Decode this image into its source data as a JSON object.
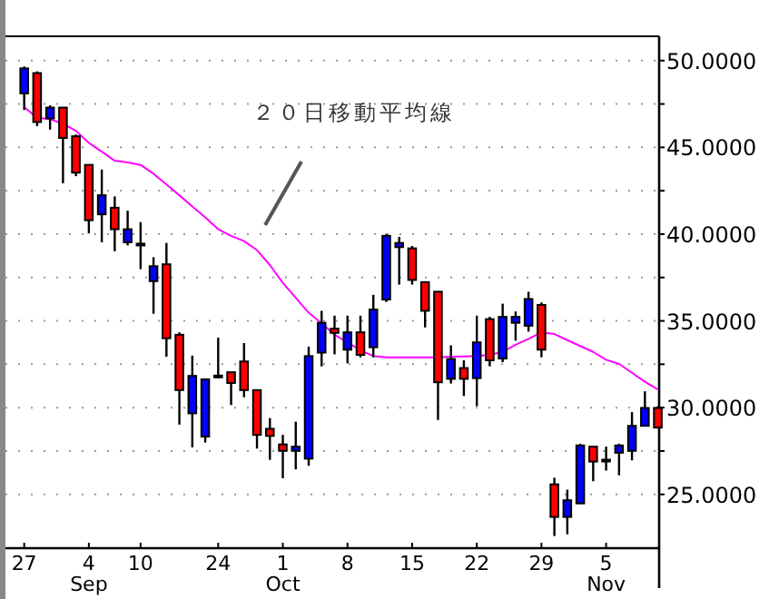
{
  "chart_data": {
    "type": "candlestick",
    "categories": [
      "27",
      null,
      null,
      null,
      null,
      "4 Sep",
      null,
      null,
      null,
      "10",
      null,
      null,
      null,
      null,
      null,
      "24",
      null,
      null,
      null,
      null,
      "1 Oct",
      null,
      null,
      null,
      null,
      "8",
      null,
      null,
      null,
      null,
      "15",
      null,
      null,
      null,
      null,
      "22",
      null,
      null,
      null,
      null,
      "29",
      null,
      null,
      null,
      null,
      "5 Nov",
      null,
      null,
      null,
      null
    ],
    "ohlc": [
      [
        48.11,
        49.66,
        47.15,
        49.55
      ],
      [
        49.28,
        49.38,
        46.22,
        46.46
      ],
      [
        46.67,
        47.42,
        46.02,
        47.29
      ],
      [
        47.29,
        47.29,
        42.93,
        45.54
      ],
      [
        45.64,
        45.74,
        43.34,
        43.54
      ],
      [
        43.99,
        43.99,
        40.04,
        40.8
      ],
      [
        41.14,
        43.72,
        39.53,
        42.24
      ],
      [
        41.52,
        42.17,
        39.01,
        40.28
      ],
      [
        39.53,
        41.35,
        39.35,
        40.28
      ],
      [
        39.45,
        40.69,
        37.98,
        39.4
      ],
      [
        37.29,
        38.67,
        35.41,
        38.15
      ],
      [
        38.26,
        39.49,
        32.93,
        34.0
      ],
      [
        34.2,
        34.34,
        29.02,
        31.01
      ],
      [
        29.67,
        33.0,
        27.71,
        31.83
      ],
      [
        28.33,
        31.63,
        27.99,
        31.63
      ],
      [
        31.85,
        34.03,
        31.7,
        31.8
      ],
      [
        32.04,
        32.04,
        30.15,
        31.42
      ],
      [
        32.66,
        33.72,
        30.6,
        31.01
      ],
      [
        31.01,
        31.01,
        27.64,
        28.43
      ],
      [
        28.78,
        29.4,
        26.99,
        28.37
      ],
      [
        27.88,
        28.43,
        25.93,
        27.51
      ],
      [
        27.51,
        29.19,
        26.44,
        27.75
      ],
      [
        27.06,
        33.52,
        26.65,
        32.97
      ],
      [
        33.17,
        35.58,
        32.38,
        34.89
      ],
      [
        34.55,
        35.3,
        33.07,
        34.31
      ],
      [
        33.34,
        35.3,
        32.55,
        34.34
      ],
      [
        34.34,
        35.3,
        32.9,
        33.04
      ],
      [
        33.48,
        36.5,
        32.9,
        35.65
      ],
      [
        36.23,
        40.01,
        36.09,
        39.9
      ],
      [
        39.25,
        39.84,
        37.09,
        39.49
      ],
      [
        39.18,
        39.32,
        37.09,
        37.36
      ],
      [
        37.23,
        37.23,
        34.62,
        35.58
      ],
      [
        36.68,
        36.68,
        29.29,
        31.46
      ],
      [
        31.66,
        33.59,
        31.39,
        32.8
      ],
      [
        32.28,
        32.73,
        30.67,
        31.66
      ],
      [
        31.7,
        35.3,
        30.08,
        33.76
      ],
      [
        35.1,
        35.23,
        32.38,
        32.73
      ],
      [
        32.83,
        35.99,
        32.62,
        35.23
      ],
      [
        34.89,
        35.54,
        33.86,
        35.23
      ],
      [
        34.72,
        36.68,
        34.38,
        36.26
      ],
      [
        35.92,
        36.06,
        32.9,
        33.34
      ],
      [
        25.58,
        25.96,
        22.6,
        23.7
      ],
      [
        23.7,
        25.27,
        22.7,
        24.66
      ],
      [
        24.48,
        27.92,
        24.48,
        27.82
      ],
      [
        27.75,
        27.75,
        25.76,
        26.89
      ],
      [
        27.0,
        27.75,
        26.37,
        26.95
      ],
      [
        27.4,
        27.92,
        26.1,
        27.82
      ],
      [
        27.51,
        29.74,
        26.96,
        28.95
      ],
      [
        28.95,
        30.94,
        28.95,
        29.98
      ],
      [
        29.98,
        30.08,
        28.85,
        28.85
      ]
    ],
    "colors": [
      "#0000ff",
      "#ff0000",
      "#0000ff",
      "#ff0000",
      "#ff0000",
      "#ff0000",
      "#0000ff",
      "#ff0000",
      "#0000ff",
      "#ff0000",
      "#0000ff",
      "#ff0000",
      "#ff0000",
      "#0000ff",
      "#0000ff",
      "#ff0000",
      "#ff0000",
      "#ff0000",
      "#ff0000",
      "#ff0000",
      "#ff0000",
      "#0000ff",
      "#0000ff",
      "#0000ff",
      "#ff0000",
      "#0000ff",
      "#ff0000",
      "#0000ff",
      "#0000ff",
      "#0000ff",
      "#ff0000",
      "#ff0000",
      "#ff0000",
      "#0000ff",
      "#ff0000",
      "#0000ff",
      "#ff0000",
      "#0000ff",
      "#0000ff",
      "#0000ff",
      "#ff0000",
      "#ff0000",
      "#0000ff",
      "#0000ff",
      "#ff0000",
      "#ff0000",
      "#0000ff",
      "#0000ff",
      "#0000ff",
      "#ff0000"
    ],
    "series": [
      {
        "type": "line",
        "color": "#ff00ff",
        "values": [
          47.32,
          46.7,
          46.63,
          46.36,
          45.95,
          45.26,
          44.75,
          44.23,
          44.13,
          43.99,
          43.48,
          42.86,
          42.24,
          41.59,
          40.97,
          40.28,
          39.9,
          39.6,
          39.08,
          38.22,
          37.19,
          36.33,
          35.47,
          34.86,
          34.2,
          33.76,
          33.31,
          32.97,
          32.9,
          32.9,
          32.9,
          32.9,
          32.9,
          32.93,
          32.95,
          32.97,
          33.04,
          33.21,
          33.62,
          33.96,
          34.34,
          34.24,
          33.89,
          33.55,
          33.21,
          32.76,
          32.52,
          32.01,
          31.49,
          31.05
        ]
      }
    ],
    "ylim": [
      21.9,
      51.4
    ],
    "yticks": [
      {
        "value": 25,
        "label": "25.0000"
      },
      {
        "value": 27.5,
        "label": null
      },
      {
        "value": 30,
        "label": "30.0000"
      },
      {
        "value": 32.5,
        "label": null
      },
      {
        "value": 35,
        "label": "35.0000"
      },
      {
        "value": 37.5,
        "label": null
      },
      {
        "value": 40,
        "label": "40.0000"
      },
      {
        "value": 42.5,
        "label": null
      },
      {
        "value": 45,
        "label": "45.0000"
      },
      {
        "value": 47.5,
        "label": null
      },
      {
        "value": 50,
        "label": "50.0000"
      }
    ],
    "grid": "y",
    "annotations": [
      "２０日移動平均線"
    ]
  }
}
